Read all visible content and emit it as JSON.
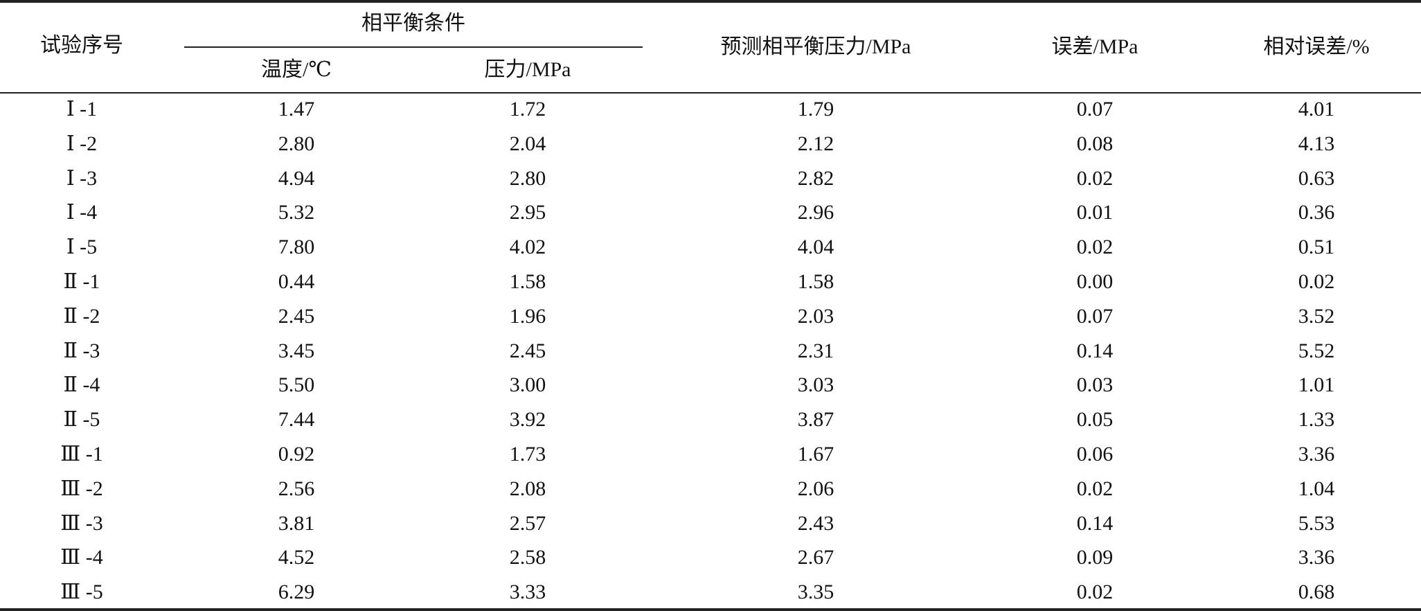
{
  "table": {
    "headers": {
      "id": "试验序号",
      "group": "相平衡条件",
      "temperature": "温度/℃",
      "pressure": "压力/MPa",
      "predicted": "预测相平衡压力/MPa",
      "error": "误差/MPa",
      "relative_error": "相对误差/%"
    },
    "rows": [
      [
        "Ⅰ -1",
        "1.47",
        "1.72",
        "1.79",
        "0.07",
        "4.01"
      ],
      [
        "Ⅰ -2",
        "2.80",
        "2.04",
        "2.12",
        "0.08",
        "4.13"
      ],
      [
        "Ⅰ -3",
        "4.94",
        "2.80",
        "2.82",
        "0.02",
        "0.63"
      ],
      [
        "Ⅰ -4",
        "5.32",
        "2.95",
        "2.96",
        "0.01",
        "0.36"
      ],
      [
        "Ⅰ -5",
        "7.80",
        "4.02",
        "4.04",
        "0.02",
        "0.51"
      ],
      [
        "Ⅱ -1",
        "0.44",
        "1.58",
        "1.58",
        "0.00",
        "0.02"
      ],
      [
        "Ⅱ -2",
        "2.45",
        "1.96",
        "2.03",
        "0.07",
        "3.52"
      ],
      [
        "Ⅱ -3",
        "3.45",
        "2.45",
        "2.31",
        "0.14",
        "5.52"
      ],
      [
        "Ⅱ -4",
        "5.50",
        "3.00",
        "3.03",
        "0.03",
        "1.01"
      ],
      [
        "Ⅱ -5",
        "7.44",
        "3.92",
        "3.87",
        "0.05",
        "1.33"
      ],
      [
        "Ⅲ -1",
        "0.92",
        "1.73",
        "1.67",
        "0.06",
        "3.36"
      ],
      [
        "Ⅲ -2",
        "2.56",
        "2.08",
        "2.06",
        "0.02",
        "1.04"
      ],
      [
        "Ⅲ -3",
        "3.81",
        "2.57",
        "2.43",
        "0.14",
        "5.53"
      ],
      [
        "Ⅲ -4",
        "4.52",
        "2.58",
        "2.67",
        "0.09",
        "3.36"
      ],
      [
        "Ⅲ -5",
        "6.29",
        "3.33",
        "3.35",
        "0.02",
        "0.68"
      ]
    ]
  }
}
